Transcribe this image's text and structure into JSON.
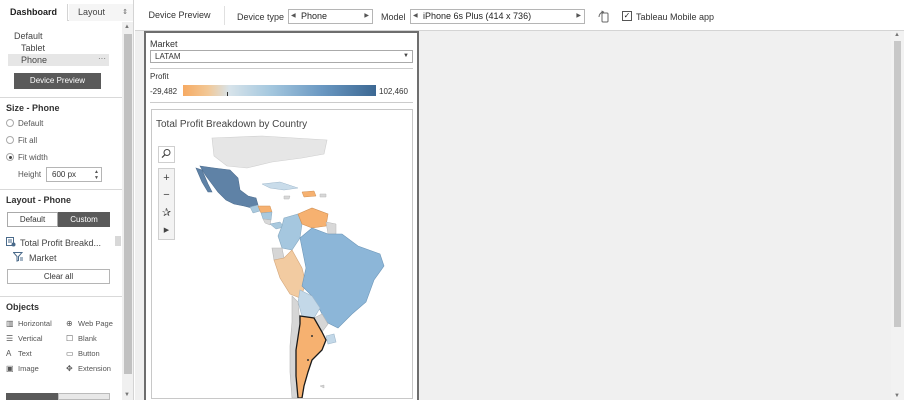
{
  "left_panel": {
    "tabs": {
      "dashboard": "Dashboard",
      "layout": "Layout",
      "layout_arrow": "⇕"
    },
    "device_list": {
      "default": "Default",
      "tablet": "Tablet",
      "phone": "Phone",
      "phone_more": "···"
    },
    "device_preview_button": "Device Preview",
    "size_section": {
      "title": "Size - Phone",
      "options": [
        "Default",
        "Fit all",
        "Fit width"
      ],
      "selected": "Fit width",
      "height_label": "Height",
      "height_value": "600 px"
    },
    "layout_section": {
      "title": "Layout - Phone",
      "segments": {
        "default": "Default",
        "custom": "Custom"
      },
      "items": [
        {
          "icon": "worksheet-icon",
          "label": "Total Profit Breakd..."
        },
        {
          "icon": "filter-icon",
          "label": "Market"
        }
      ],
      "clear_all": "Clear all"
    },
    "objects_section": {
      "title": "Objects",
      "items": [
        {
          "icon": "horizontal-icon",
          "label": "Horizontal"
        },
        {
          "icon": "web-page-icon",
          "label": "Web Page"
        },
        {
          "icon": "vertical-icon",
          "label": "Vertical"
        },
        {
          "icon": "blank-icon",
          "label": "Blank"
        },
        {
          "icon": "text-icon",
          "label": "Text"
        },
        {
          "icon": "button-icon",
          "label": "Button"
        },
        {
          "icon": "image-icon",
          "label": "Image"
        },
        {
          "icon": "extension-icon",
          "label": "Extension"
        }
      ]
    }
  },
  "toolbar": {
    "preview_tab": "Device Preview",
    "device_type_label": "Device type",
    "device_type_value": "Phone",
    "model_label": "Model",
    "model_value": "iPhone 6s Plus (414 x 736)",
    "mobile_app_label": "Tableau Mobile app",
    "mobile_app_checked": true
  },
  "dashboard": {
    "market_filter": {
      "label": "Market",
      "value": "LATAM"
    },
    "profit_legend": {
      "label": "Profit",
      "min": "-29,482",
      "max": "102,460",
      "colors": [
        "#f6aa63",
        "#d7e3ea",
        "#3c6893"
      ]
    },
    "map": {
      "title": "Total Profit Breakdown by Country"
    }
  }
}
